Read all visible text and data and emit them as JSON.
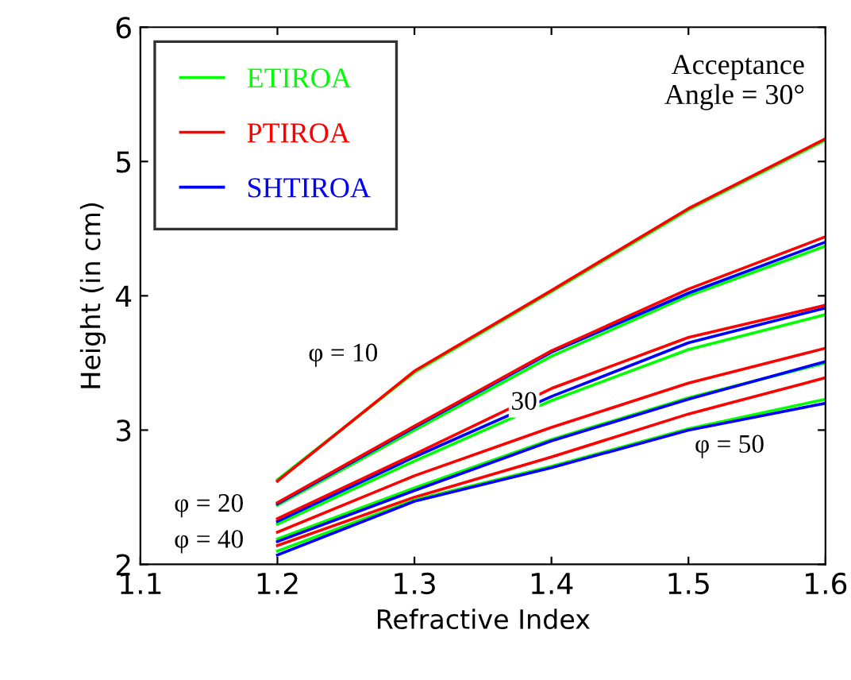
{
  "chart_data": {
    "type": "line",
    "xlabel": "Refractive Index",
    "ylabel": "Height (in cm)",
    "x": [
      1.2,
      1.3,
      1.4,
      1.5,
      1.6
    ],
    "series": [
      {
        "name": "ETIROA",
        "color": "#00ff00",
        "values": [
          2.63,
          3.43,
          4.03,
          4.64,
          5.16
        ]
      },
      {
        "name": "PTIROA",
        "color": "#ff0000",
        "values": [
          2.62,
          3.44,
          4.04,
          4.65,
          5.17
        ]
      },
      {
        "color": "#00ff00",
        "values": [
          2.44,
          3.0,
          3.55,
          4.0,
          4.37
        ]
      },
      {
        "name": "SHTIROA",
        "color": "#0000ff",
        "values": [
          2.45,
          3.02,
          3.58,
          4.02,
          4.4
        ]
      },
      {
        "color": "#ff0000",
        "values": [
          2.46,
          3.03,
          3.59,
          4.05,
          4.44
        ]
      },
      {
        "color": "#00ff00",
        "values": [
          2.3,
          2.77,
          3.22,
          3.6,
          3.86
        ]
      },
      {
        "color": "#0000ff",
        "values": [
          2.32,
          2.8,
          3.25,
          3.65,
          3.91
        ]
      },
      {
        "color": "#ff0000",
        "values": [
          2.34,
          2.82,
          3.31,
          3.69,
          3.93
        ]
      },
      {
        "color": "#00ff00",
        "values": [
          2.19,
          2.57,
          2.93,
          3.24,
          3.5
        ]
      },
      {
        "color": "#0000ff",
        "values": [
          2.17,
          2.55,
          2.92,
          3.23,
          3.51
        ]
      },
      {
        "color": "#ff0000",
        "values": [
          2.24,
          2.66,
          3.02,
          3.35,
          3.61
        ]
      },
      {
        "color": "#ff0000",
        "values": [
          2.14,
          2.5,
          2.8,
          3.12,
          3.39
        ]
      },
      {
        "color": "#00ff00",
        "values": [
          2.1,
          2.48,
          2.73,
          3.01,
          3.23
        ]
      },
      {
        "color": "#0000ff",
        "values": [
          2.07,
          2.47,
          2.72,
          3.0,
          3.2
        ]
      }
    ],
    "xlim": [
      1.1,
      1.6
    ],
    "ylim": [
      2,
      6
    ],
    "xticks": [
      1.1,
      1.2,
      1.3,
      1.4,
      1.5,
      1.6
    ],
    "yticks": [
      2,
      3,
      4,
      5,
      6
    ],
    "grid": false,
    "legend": "top left",
    "marker": "none",
    "line_style": "solid",
    "annotations": [
      "Acceptance\nAngle = 30°",
      "φ = 10",
      "φ = 20",
      "30",
      "φ = 40",
      "φ = 50"
    ]
  }
}
